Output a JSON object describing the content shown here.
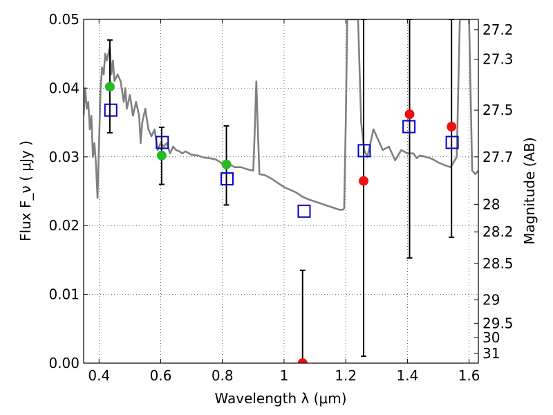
{
  "chart_data": {
    "type": "scatter",
    "title": "",
    "xlabel": "Wavelength  λ (μm)",
    "ylabel": "Flux  F_ν  ( μJy )",
    "ylabel_right": "Magnitude (AB)",
    "xlim": [
      0.35,
      1.63
    ],
    "ylim": [
      0.0,
      0.05
    ],
    "grid": true,
    "x_ticks": [
      0.4,
      0.6,
      0.8,
      1.0,
      1.2,
      1.4,
      1.6
    ],
    "x_tick_labels": [
      "0.4",
      "0.6",
      "0.8",
      "1",
      "1.2",
      "1.4",
      "1.6"
    ],
    "y_ticks": [
      0.0,
      0.01,
      0.02,
      0.03,
      0.04,
      0.05
    ],
    "y_tick_labels": [
      "0.00",
      "0.01",
      "0.02",
      "0.03",
      "0.04",
      "0.05"
    ],
    "right_axis_ticks": [
      {
        "label": "27.2",
        "flux": 0.0485
      },
      {
        "label": "27.3",
        "flux": 0.0442
      },
      {
        "label": "27.5",
        "flux": 0.0368
      },
      {
        "label": "27.7",
        "flux": 0.03
      },
      {
        "label": "28",
        "flux": 0.0231
      },
      {
        "label": "28.2",
        "flux": 0.0191
      },
      {
        "label": "28.5",
        "flux": 0.0145
      },
      {
        "label": "29",
        "flux": 0.0092
      },
      {
        "label": "29.5",
        "flux": 0.0058
      },
      {
        "label": "30",
        "flux": 0.0037
      },
      {
        "label": "31",
        "flux": 0.0014
      }
    ],
    "model_spectrum": {
      "color": "#808080",
      "x": [
        0.35,
        0.355,
        0.36,
        0.365,
        0.37,
        0.375,
        0.38,
        0.385,
        0.39,
        0.395,
        0.4,
        0.405,
        0.41,
        0.415,
        0.42,
        0.425,
        0.43,
        0.435,
        0.44,
        0.445,
        0.45,
        0.46,
        0.47,
        0.48,
        0.485,
        0.49,
        0.5,
        0.51,
        0.52,
        0.53,
        0.535,
        0.54,
        0.55,
        0.56,
        0.57,
        0.58,
        0.59,
        0.6,
        0.61,
        0.62,
        0.63,
        0.64,
        0.65,
        0.66,
        0.67,
        0.68,
        0.7,
        0.72,
        0.74,
        0.76,
        0.78,
        0.8,
        0.82,
        0.84,
        0.86,
        0.88,
        0.9,
        0.905,
        0.91,
        0.915,
        0.92,
        0.94,
        0.96,
        0.98,
        1.0,
        1.02,
        1.04,
        1.06,
        1.08,
        1.1,
        1.12,
        1.14,
        1.16,
        1.18,
        1.19,
        1.195,
        1.2,
        1.205,
        1.21,
        1.215,
        1.22,
        1.23,
        1.24,
        1.25,
        1.26,
        1.27,
        1.28,
        1.29,
        1.3,
        1.32,
        1.34,
        1.36,
        1.38,
        1.4,
        1.42,
        1.43,
        1.44,
        1.46,
        1.48,
        1.5,
        1.52,
        1.54,
        1.56,
        1.57,
        1.58,
        1.59,
        1.6,
        1.61,
        1.62,
        1.63
      ],
      "y": [
        0.036,
        0.04,
        0.037,
        0.038,
        0.034,
        0.036,
        0.03,
        0.032,
        0.029,
        0.024,
        0.032,
        0.04,
        0.043,
        0.042,
        0.045,
        0.044,
        0.045,
        0.046,
        0.042,
        0.044,
        0.041,
        0.042,
        0.041,
        0.038,
        0.04,
        0.037,
        0.039,
        0.036,
        0.038,
        0.036,
        0.032,
        0.035,
        0.037,
        0.034,
        0.033,
        0.034,
        0.031,
        0.032,
        0.0315,
        0.032,
        0.0305,
        0.0315,
        0.031,
        0.0308,
        0.0305,
        0.0308,
        0.0303,
        0.0302,
        0.0299,
        0.0298,
        0.0296,
        0.029,
        0.029,
        0.0285,
        0.0285,
        0.0282,
        0.028,
        0.034,
        0.041,
        0.034,
        0.0275,
        0.0273,
        0.0268,
        0.0262,
        0.0256,
        0.0252,
        0.0248,
        0.0242,
        0.0238,
        0.0235,
        0.0232,
        0.0229,
        0.0226,
        0.0223,
        0.0223,
        0.0225,
        0.035,
        0.05,
        0.05,
        0.05,
        0.05,
        0.05,
        0.05,
        0.035,
        0.031,
        0.03,
        0.032,
        0.034,
        0.033,
        0.031,
        0.0315,
        0.0295,
        0.031,
        0.0305,
        0.0305,
        0.0298,
        0.0302,
        0.03,
        0.0297,
        0.0292,
        0.0288,
        0.0285,
        0.03,
        0.05,
        0.05,
        0.05,
        0.05,
        0.028,
        0.0275,
        0.028
      ]
    },
    "series": [
      {
        "name": "",
        "marker": "open-square",
        "color": "#0000cc",
        "x": [
          0.438,
          0.605,
          0.815,
          1.065,
          1.26,
          1.405,
          1.545
        ],
        "y": [
          0.0368,
          0.0321,
          0.0268,
          0.0221,
          0.0309,
          0.0344,
          0.0321
        ]
      },
      {
        "name": "",
        "marker": "filled-circle",
        "color": "#22bb22",
        "x": [
          0.435,
          0.603,
          0.813
        ],
        "y": [
          0.0402,
          0.0302,
          0.0289
        ],
        "err_low": [
          0.0335,
          0.026,
          0.023
        ],
        "err_high": [
          0.047,
          0.0343,
          0.0345
        ]
      },
      {
        "name": "",
        "marker": "filled-circle",
        "color": "#ee1111",
        "x": [
          1.06,
          1.258,
          1.407,
          1.543
        ],
        "y": [
          0.0,
          0.0265,
          0.0362,
          0.0344
        ],
        "err_low": [
          0.0,
          0.001,
          0.0153,
          0.0183
        ],
        "err_high": [
          0.0135,
          0.05,
          0.05,
          0.05
        ]
      }
    ]
  }
}
